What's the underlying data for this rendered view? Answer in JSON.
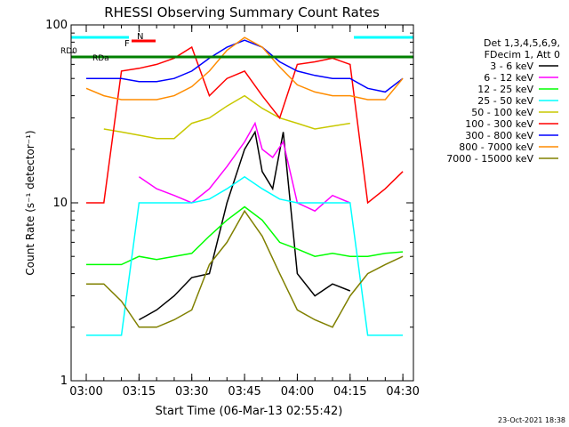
{
  "chart_data": {
    "type": "line",
    "title": "RHESSI Observing Summary Count Rates",
    "xlabel": "Start Time (06-Mar-13 02:55:42)",
    "ylabel": "Count Rate (s⁻¹ detector⁻¹)",
    "y_scale": "log",
    "ylim": [
      1,
      100
    ],
    "xlim": [
      "02:55:42",
      "04:33:00"
    ],
    "x_ticks": [
      "03:00",
      "03:15",
      "03:30",
      "03:45",
      "04:00",
      "04:15",
      "04:30"
    ],
    "y_ticks": [
      "1",
      "10",
      "100"
    ],
    "grid": false,
    "legend_position": "right",
    "legend_header": [
      "Det 1,3,4,5,6,9,",
      "FDecim 1, Att 0"
    ],
    "footer_date": "23-Oct-2021 18:38",
    "flags": {
      "rd_labels": [
        "RD0",
        "RDa"
      ],
      "n_label": "N",
      "f_label": "F"
    },
    "series": [
      {
        "name": "3 - 6 keV",
        "color": "#000000",
        "x": [
          "03:00",
          "03:05",
          "03:10",
          "03:15",
          "03:20",
          "03:25",
          "03:30",
          "03:35",
          "03:40",
          "03:45",
          "03:48",
          "03:50",
          "03:53",
          "03:56",
          "04:00",
          "04:05",
          "04:10",
          "04:15",
          "04:20",
          "04:25",
          "04:30"
        ],
        "values": [
          null,
          null,
          null,
          2.2,
          2.5,
          3.0,
          3.8,
          4.0,
          10,
          20,
          25,
          15,
          12,
          25,
          4.0,
          3.0,
          3.5,
          3.2,
          null,
          null,
          null
        ]
      },
      {
        "name": "6 - 12 keV",
        "color": "#ff00ff",
        "x": [
          "03:00",
          "03:05",
          "03:10",
          "03:15",
          "03:20",
          "03:25",
          "03:30",
          "03:35",
          "03:40",
          "03:45",
          "03:48",
          "03:50",
          "03:53",
          "03:56",
          "04:00",
          "04:05",
          "04:10",
          "04:15",
          "04:20",
          "04:25",
          "04:30"
        ],
        "values": [
          null,
          null,
          null,
          14,
          12,
          11,
          10,
          12,
          16,
          22,
          28,
          20,
          18,
          22,
          10,
          9,
          11,
          10,
          null,
          null,
          null
        ]
      },
      {
        "name": "12 - 25 keV",
        "color": "#00ff00",
        "x": [
          "03:00",
          "03:05",
          "03:10",
          "03:15",
          "03:20",
          "03:25",
          "03:30",
          "03:35",
          "03:40",
          "03:45",
          "03:50",
          "03:55",
          "04:00",
          "04:05",
          "04:10",
          "04:15",
          "04:20",
          "04:25",
          "04:30"
        ],
        "values": [
          4.5,
          4.5,
          4.5,
          5.0,
          4.8,
          5.0,
          5.2,
          6.5,
          8.0,
          9.5,
          8.0,
          6.0,
          5.5,
          5.0,
          5.2,
          5.0,
          5.0,
          5.2,
          5.3
        ]
      },
      {
        "name": "25 - 50 keV",
        "color": "#00ffff",
        "x": [
          "03:00",
          "03:05",
          "03:10",
          "03:15",
          "03:20",
          "03:25",
          "03:30",
          "03:35",
          "03:40",
          "03:45",
          "03:50",
          "03:55",
          "04:00",
          "04:05",
          "04:10",
          "04:15",
          "04:20",
          "04:25",
          "04:30"
        ],
        "values": [
          1.8,
          1.8,
          1.8,
          10,
          10,
          10,
          10,
          10.5,
          12,
          14,
          12,
          10.5,
          10,
          10,
          10,
          10,
          1.8,
          1.8,
          1.8
        ]
      },
      {
        "name": "50 - 100 keV",
        "color": "#c8c800",
        "x": [
          "03:00",
          "03:05",
          "03:10",
          "03:15",
          "03:20",
          "03:25",
          "03:30",
          "03:35",
          "03:40",
          "03:45",
          "03:50",
          "03:55",
          "04:00",
          "04:05",
          "04:10",
          "04:15",
          "04:20",
          "04:25",
          "04:30"
        ],
        "values": [
          null,
          26,
          25,
          24,
          23,
          23,
          28,
          30,
          35,
          40,
          34,
          30,
          28,
          26,
          27,
          28,
          null,
          null,
          null
        ]
      },
      {
        "name": "100 - 300 keV",
        "color": "#ff0000",
        "x": [
          "03:00",
          "03:05",
          "03:10",
          "03:15",
          "03:20",
          "03:25",
          "03:30",
          "03:35",
          "03:40",
          "03:45",
          "03:50",
          "03:55",
          "04:00",
          "04:05",
          "04:10",
          "04:15",
          "04:20",
          "04:25",
          "04:30"
        ],
        "values": [
          10,
          10,
          55,
          57,
          60,
          65,
          75,
          40,
          50,
          55,
          40,
          30,
          60,
          62,
          65,
          60,
          10,
          12,
          15
        ]
      },
      {
        "name": "300 - 800 keV",
        "color": "#0000ff",
        "x": [
          "03:00",
          "03:05",
          "03:10",
          "03:15",
          "03:20",
          "03:25",
          "03:30",
          "03:35",
          "03:40",
          "03:45",
          "03:50",
          "03:55",
          "04:00",
          "04:05",
          "04:10",
          "04:15",
          "04:20",
          "04:25",
          "04:30"
        ],
        "values": [
          50,
          50,
          50,
          48,
          48,
          50,
          55,
          65,
          75,
          82,
          75,
          62,
          55,
          52,
          50,
          50,
          44,
          42,
          50
        ]
      },
      {
        "name": "800 - 7000 keV",
        "color": "#ff8c00",
        "x": [
          "03:00",
          "03:05",
          "03:10",
          "03:15",
          "03:20",
          "03:25",
          "03:30",
          "03:35",
          "03:40",
          "03:45",
          "03:50",
          "03:55",
          "04:00",
          "04:05",
          "04:10",
          "04:15",
          "04:20",
          "04:25",
          "04:30"
        ],
        "values": [
          44,
          40,
          38,
          38,
          38,
          40,
          45,
          55,
          72,
          85,
          75,
          58,
          46,
          42,
          40,
          40,
          38,
          38,
          50
        ]
      },
      {
        "name": "7000 - 15000 keV",
        "color": "#808000",
        "x": [
          "03:00",
          "03:05",
          "03:10",
          "03:15",
          "03:20",
          "03:25",
          "03:30",
          "03:35",
          "03:40",
          "03:45",
          "03:50",
          "03:55",
          "04:00",
          "04:05",
          "04:10",
          "04:15",
          "04:20",
          "04:25",
          "04:30"
        ],
        "values": [
          3.5,
          3.5,
          2.8,
          2.0,
          2.0,
          2.2,
          2.5,
          4.5,
          6.0,
          9.0,
          6.5,
          4.0,
          2.5,
          2.2,
          2.0,
          3.0,
          4.0,
          4.5,
          5.0
        ]
      }
    ]
  }
}
